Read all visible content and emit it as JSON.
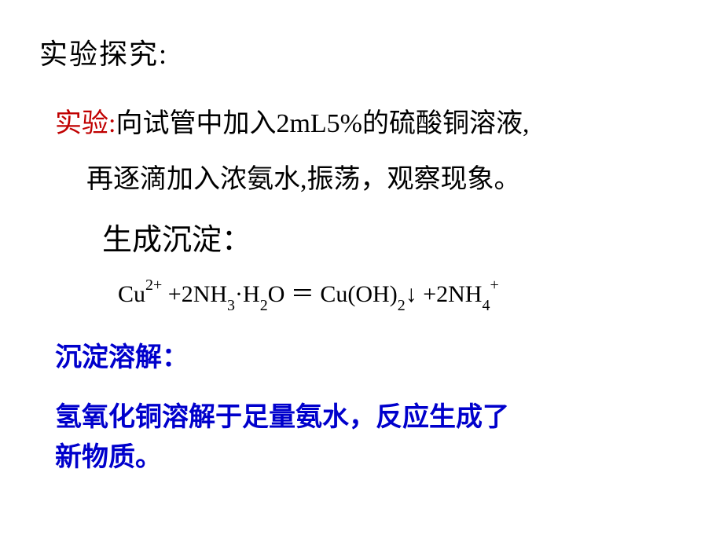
{
  "title": "实验探究:",
  "experiment": {
    "label": "实验:",
    "line1_rest": "向试管中加入2mL5%的硫酸铜溶液,",
    "line2": "再逐滴加入浓氨水,振荡，观察现象。"
  },
  "precipitate_form": "生成沉淀：",
  "equation": {
    "cu": "Cu",
    "cu_sup": "2+",
    "space1": " +2NH",
    "nh3_sub": "3",
    "dot_h": "·H",
    "h2_sub": "2",
    "o_eq": "O ＝ Cu(OH)",
    "oh2_sub": "2",
    "arrow": "↓ +2NH",
    "nh4_sub": "4",
    "nh4_sup": "+"
  },
  "dissolve_label": "沉淀溶解：",
  "conclusion": {
    "line1": "氢氧化铜溶解于足量氨水，反应生成了",
    "line2": "新物质。"
  },
  "colors": {
    "text_black": "#000000",
    "text_red": "#c00000",
    "text_blue": "#0000cc",
    "background": "#ffffff"
  }
}
